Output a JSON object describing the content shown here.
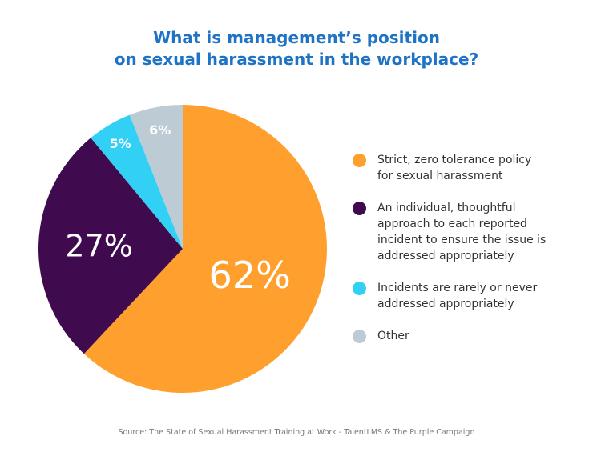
{
  "chart_data": {
    "type": "pie",
    "title": "What is management’s position on sexual harassment in the workplace?",
    "title_lines": [
      "What is management’s position",
      "on sexual harassment in the workplace?"
    ],
    "categories": [
      "Strict, zero tolerance policy for sexual harassment",
      "An individual, thoughtful approach to each reported incident to ensure the issue is addressed appropriately",
      "Incidents are rarely or never addressed appropriately",
      "Other"
    ],
    "values": [
      62,
      27,
      5,
      6
    ],
    "data_labels": [
      "62%",
      "27%",
      "5%",
      "6%"
    ],
    "colors": [
      "#ff9f2d",
      "#3f0b4e",
      "#33d0f5",
      "#bdcbd5"
    ],
    "start": "top, clockwise",
    "legend_position": "right",
    "source": "Source: The State of Sexual Harassment Training at Work - TalentLMS & The Purple Campaign"
  }
}
